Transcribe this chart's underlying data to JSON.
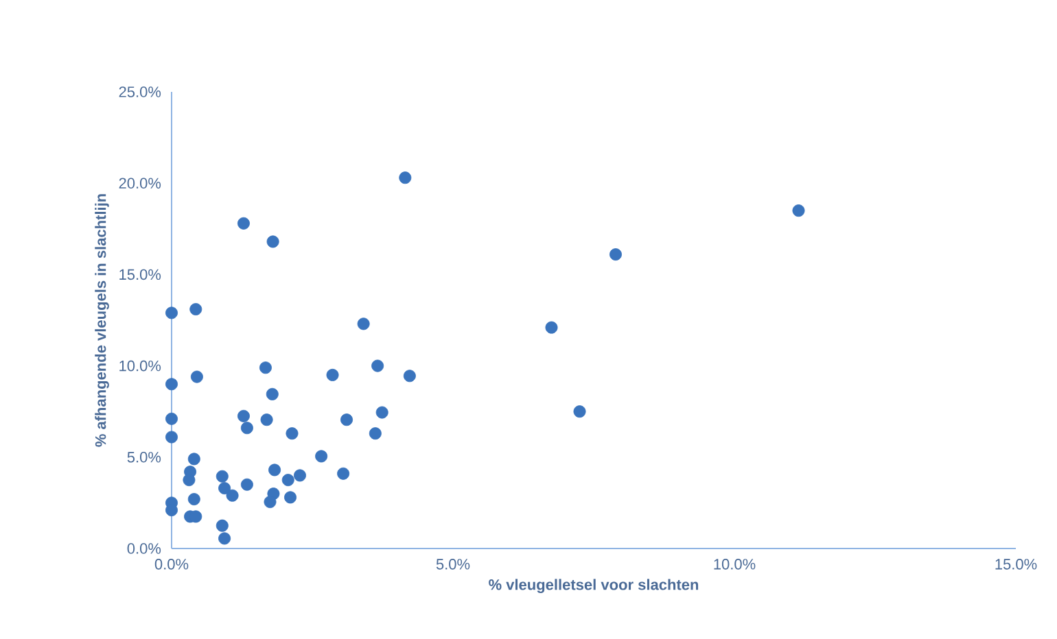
{
  "chart_data": {
    "type": "scatter",
    "xlabel": "% vleugelletsel voor slachten",
    "ylabel": "% afhangende vleugels in slachtlijn",
    "x": [
      0,
      0.43,
      1.28,
      1.8,
      4.15,
      0,
      0.45,
      0,
      0,
      0.4,
      0.33,
      0.31,
      0.4,
      0,
      0,
      0.33,
      0.43,
      0.9,
      0.94,
      1.08,
      1.34,
      0.9,
      0.94,
      1.28,
      1.34,
      1.67,
      1.69,
      1.79,
      1.83,
      1.81,
      1.75,
      2.14,
      2.11,
      2.07,
      2.28,
      2.66,
      3.05,
      2.86,
      3.11,
      3.41,
      3.66,
      3.62,
      3.74,
      4.23,
      11.14,
      7.89,
      6.75,
      7.25
    ],
    "values": [
      12.9,
      13.1,
      17.8,
      16.8,
      20.3,
      9.0,
      9.4,
      7.1,
      6.1,
      4.9,
      4.2,
      3.75,
      2.7,
      2.5,
      2.1,
      1.75,
      1.75,
      3.95,
      3.3,
      2.9,
      3.5,
      1.25,
      0.55,
      7.25,
      6.6,
      9.9,
      7.05,
      8.45,
      4.3,
      3.0,
      2.55,
      6.3,
      2.8,
      3.75,
      4.0,
      5.05,
      4.1,
      9.5,
      7.05,
      12.3,
      10.0,
      6.3,
      7.45,
      9.45,
      18.5,
      16.1,
      12.1,
      7.5
    ],
    "color": "#3a74bd",
    "xlim": [
      0,
      15
    ],
    "ylim": [
      0,
      25
    ],
    "xticks": [
      {
        "value": 0,
        "label": "0.0%"
      },
      {
        "value": 5,
        "label": "5.0%"
      },
      {
        "value": 10,
        "label": "10.0%"
      },
      {
        "value": 15,
        "label": "15.0%"
      }
    ],
    "yticks": [
      {
        "value": 0,
        "label": "0.0%"
      },
      {
        "value": 5,
        "label": "5.0%"
      },
      {
        "value": 10,
        "label": "10.0%"
      },
      {
        "value": 15,
        "label": "15.0%"
      },
      {
        "value": 20,
        "label": "20.0%"
      },
      {
        "value": 25,
        "label": "25.0%"
      }
    ]
  }
}
